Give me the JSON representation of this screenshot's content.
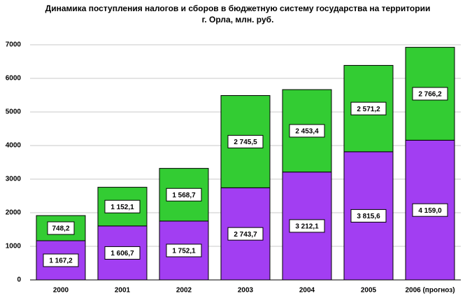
{
  "chart_data": {
    "type": "stacked_bar",
    "title": "Динамика поступления налогов и сборов в бюджетную систему государства на территории г. Орла, млн. руб.",
    "categories": [
      "2000",
      "2001",
      "2002",
      "2003",
      "2004",
      "2005",
      "2006 (прогноз)"
    ],
    "series": [
      {
        "color": "#a23ef2",
        "values": [
          1167.2,
          1606.7,
          1752.1,
          2743.7,
          3212.1,
          3815.6,
          4159.0
        ],
        "value_labels": [
          "1 167,2",
          "1 606,7",
          "1 752,1",
          "2 743,7",
          "3 212,1",
          "3 815,6",
          "4 159,0"
        ]
      },
      {
        "color": "#33cc33",
        "values": [
          748.2,
          1152.1,
          1568.7,
          2745.5,
          2453.4,
          2571.2,
          2766.2
        ],
        "value_labels": [
          "748,2",
          "1 152,1",
          "1 568,7",
          "2 745,5",
          "2 453,4",
          "2 571,2",
          "2 766,2"
        ]
      }
    ],
    "ylim": [
      0,
      7000
    ],
    "yticks": [
      0,
      1000,
      2000,
      3000,
      4000,
      5000,
      6000,
      7000
    ],
    "grid": true
  }
}
